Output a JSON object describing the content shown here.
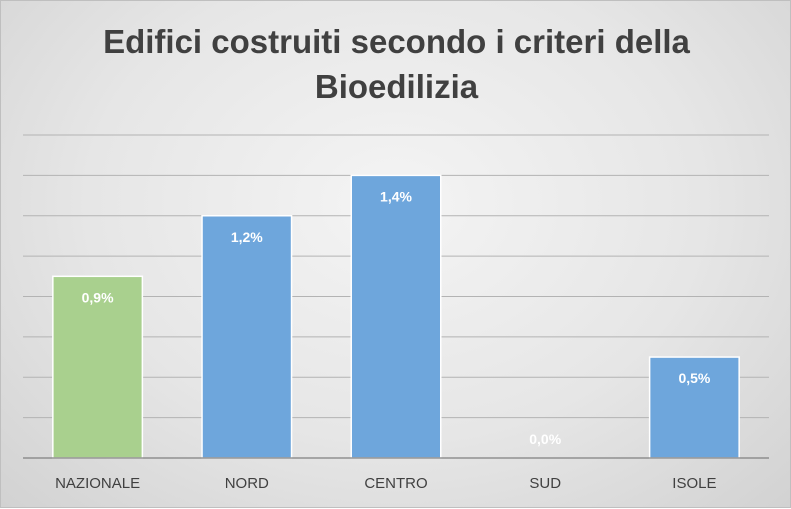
{
  "chart_data": {
    "type": "bar",
    "title_lines": [
      "Edifici costruiti secondo i criteri della",
      "Bioedilizia"
    ],
    "categories": [
      "NAZIONALE",
      "NORD",
      "CENTRO",
      "SUD",
      "ISOLE"
    ],
    "values": [
      0.9,
      1.2,
      1.4,
      0.0,
      0.5
    ],
    "data_labels": [
      "0,9%",
      "1,2%",
      "1,4%",
      "0,0%",
      "0,5%"
    ],
    "ylim": [
      0,
      1.6
    ],
    "y_grid_step": 0.2,
    "grid": true,
    "legend": "none",
    "colors": {
      "highlight": "#a9d08e",
      "default": "#6ea6dc",
      "bar_border": "#ffffff"
    },
    "highlight_category": "NAZIONALE"
  }
}
